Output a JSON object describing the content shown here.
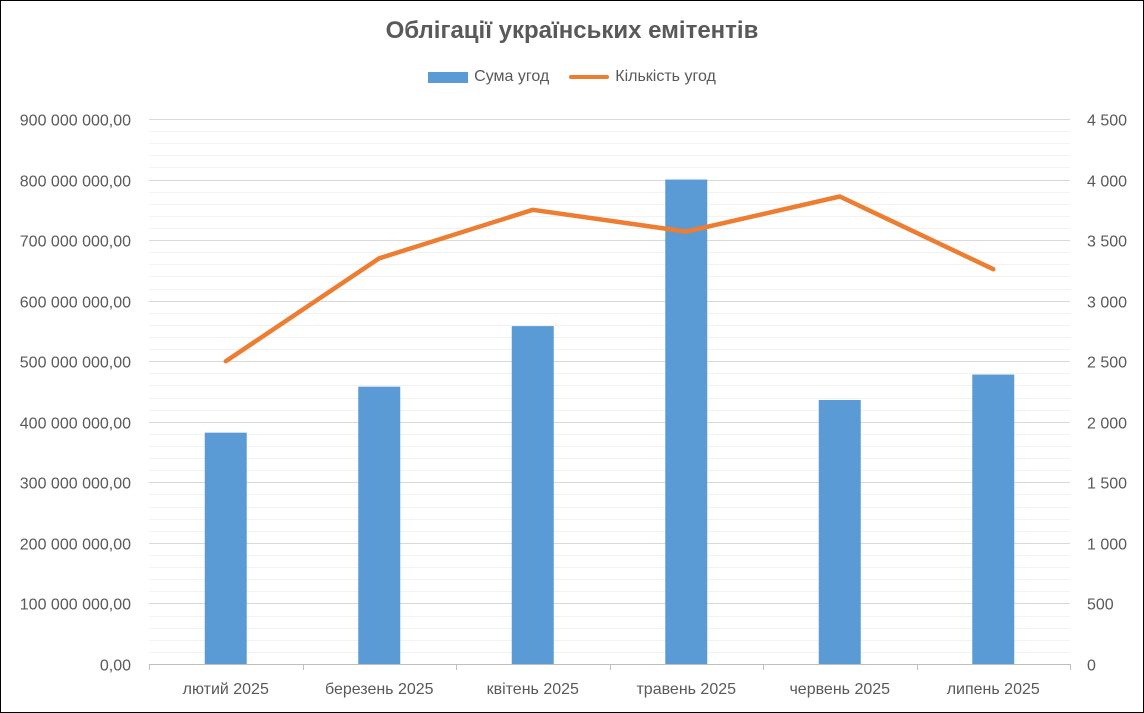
{
  "chart_data": {
    "type": "bar",
    "title": "Облігації українських емітентів",
    "categories": [
      "лютий 2025",
      "березень 2025",
      "квітень 2025",
      "травень 2025",
      "червень 2025",
      "липень 2025"
    ],
    "series": [
      {
        "name": "Сума угод",
        "type": "bar",
        "axis": "left",
        "color": "#5B9BD5",
        "values": [
          382000000,
          458000000,
          558000000,
          800000000,
          436000000,
          478000000
        ]
      },
      {
        "name": "Кількість угод",
        "type": "line",
        "axis": "right",
        "color": "#ED7D31",
        "values": [
          2500,
          3350,
          3750,
          3570,
          3860,
          3260
        ]
      }
    ],
    "y_left": {
      "ylim": [
        0,
        900000000
      ],
      "ticks": [
        0,
        100000000,
        200000000,
        300000000,
        400000000,
        500000000,
        600000000,
        700000000,
        800000000,
        900000000
      ],
      "tick_labels": [
        "0,00",
        "100 000 000,00",
        "200 000 000,00",
        "300 000 000,00",
        "400 000 000,00",
        "500 000 000,00",
        "600 000 000,00",
        "700 000 000,00",
        "800 000 000,00",
        "900 000 000,00"
      ]
    },
    "y_right": {
      "ylim": [
        0,
        4500
      ],
      "ticks": [
        0,
        500,
        1000,
        1500,
        2000,
        2500,
        3000,
        3500,
        4000,
        4500
      ],
      "tick_labels": [
        "0",
        "500",
        "1 000",
        "1 500",
        "2 000",
        "2 500",
        "3 000",
        "3 500",
        "4 000",
        "4 500"
      ]
    },
    "grid": true,
    "legend_position": "top"
  }
}
